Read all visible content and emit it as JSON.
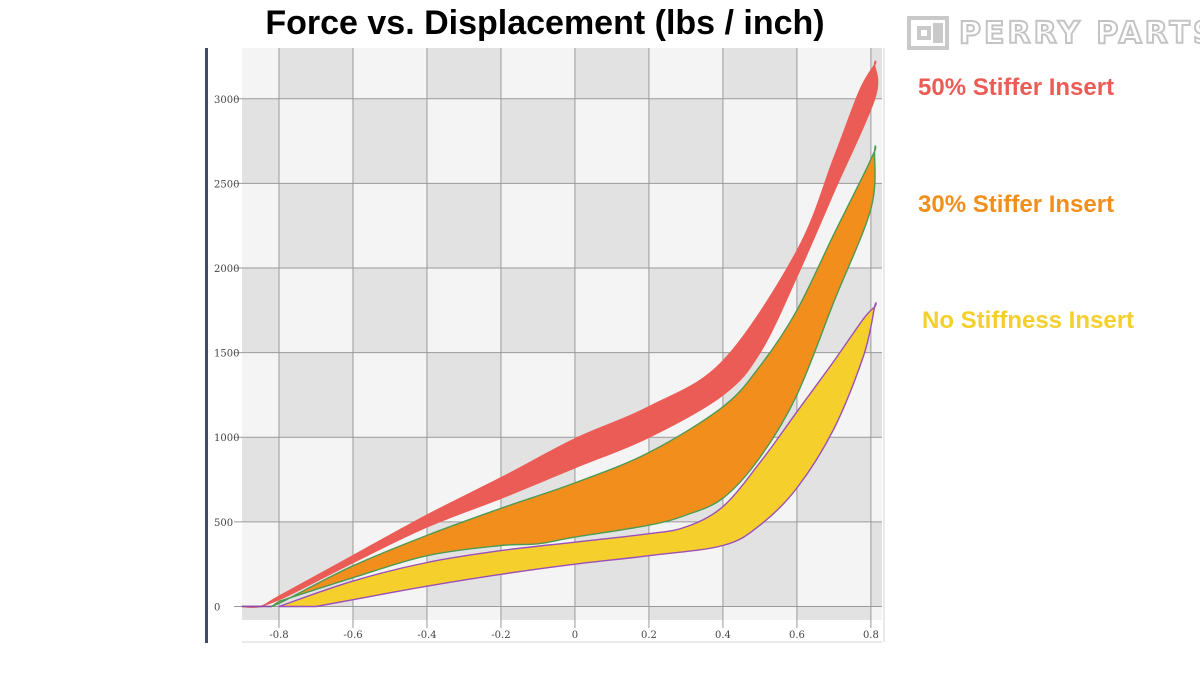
{
  "chart_data": {
    "type": "area",
    "title": "Force vs. Displacement (lbs / inch)",
    "xlabel": "",
    "ylabel": "",
    "xlim": [
      -0.9,
      0.83
    ],
    "ylim": [
      -80,
      3300
    ],
    "x_ticks": [
      -0.8,
      -0.6,
      -0.4,
      -0.2,
      0,
      0.2,
      0.4,
      0.6,
      0.8
    ],
    "x_tick_labels": [
      "-0.8",
      "-0.6",
      "-0.4",
      "-0.2",
      "0",
      "0.2",
      "0.4",
      "0.6",
      "0.8"
    ],
    "y_ticks": [
      0,
      500,
      1000,
      1500,
      2000,
      2500,
      3000
    ],
    "y_tick_labels": [
      "0",
      "500",
      "1000",
      "1500",
      "2000",
      "2500",
      "3000"
    ],
    "grid": true,
    "legend_position": "right",
    "series": [
      {
        "name": "50% Stiffer Insert",
        "color": "#ec5c56",
        "outline": "#ec5c56",
        "upper": [
          [
            -0.9,
            0
          ],
          [
            -0.85,
            0
          ],
          [
            -0.8,
            60
          ],
          [
            -0.6,
            300
          ],
          [
            -0.4,
            540
          ],
          [
            -0.2,
            760
          ],
          [
            0,
            990
          ],
          [
            0.2,
            1180
          ],
          [
            0.4,
            1450
          ],
          [
            0.6,
            2100
          ],
          [
            0.7,
            2650
          ],
          [
            0.77,
            3050
          ],
          [
            0.81,
            3200
          ]
        ],
        "lower": [
          [
            0.81,
            3200
          ],
          [
            0.81,
            3000
          ],
          [
            0.7,
            2450
          ],
          [
            0.6,
            1950
          ],
          [
            0.5,
            1500
          ],
          [
            0.4,
            1250
          ],
          [
            0.2,
            1000
          ],
          [
            0,
            820
          ],
          [
            -0.2,
            640
          ],
          [
            -0.4,
            470
          ],
          [
            -0.6,
            260
          ],
          [
            -0.78,
            60
          ],
          [
            -0.85,
            0
          ]
        ]
      },
      {
        "name": "30% Stiffer Insert",
        "color": "#f28e1c",
        "outline": "#4e9a52",
        "upper": [
          [
            -0.82,
            0
          ],
          [
            -0.78,
            40
          ],
          [
            -0.6,
            240
          ],
          [
            -0.4,
            420
          ],
          [
            -0.2,
            580
          ],
          [
            0,
            730
          ],
          [
            0.2,
            910
          ],
          [
            0.4,
            1180
          ],
          [
            0.5,
            1420
          ],
          [
            0.6,
            1750
          ],
          [
            0.7,
            2200
          ],
          [
            0.78,
            2550
          ],
          [
            0.81,
            2690
          ]
        ],
        "lower": [
          [
            0.81,
            2690
          ],
          [
            0.8,
            2350
          ],
          [
            0.7,
            1800
          ],
          [
            0.6,
            1250
          ],
          [
            0.5,
            880
          ],
          [
            0.4,
            640
          ],
          [
            0.3,
            540
          ],
          [
            0.2,
            480
          ],
          [
            0,
            410
          ],
          [
            -0.1,
            370
          ],
          [
            -0.2,
            360
          ],
          [
            -0.4,
            300
          ],
          [
            -0.6,
            170
          ],
          [
            -0.8,
            30
          ]
        ]
      },
      {
        "name": "No Stiffness Insert",
        "color": "#f5d02c",
        "outline": "#9b4fb8",
        "upper": [
          [
            -0.8,
            0
          ],
          [
            -0.6,
            150
          ],
          [
            -0.4,
            260
          ],
          [
            -0.2,
            330
          ],
          [
            0,
            380
          ],
          [
            0.2,
            430
          ],
          [
            0.3,
            470
          ],
          [
            0.4,
            590
          ],
          [
            0.5,
            850
          ],
          [
            0.6,
            1150
          ],
          [
            0.7,
            1450
          ],
          [
            0.78,
            1700
          ],
          [
            0.81,
            1770
          ]
        ],
        "lower": [
          [
            0.81,
            1770
          ],
          [
            0.78,
            1480
          ],
          [
            0.7,
            1050
          ],
          [
            0.6,
            700
          ],
          [
            0.5,
            480
          ],
          [
            0.4,
            360
          ],
          [
            0.2,
            300
          ],
          [
            0,
            250
          ],
          [
            -0.2,
            190
          ],
          [
            -0.4,
            120
          ],
          [
            -0.6,
            40
          ],
          [
            -0.7,
            0
          ]
        ]
      }
    ]
  },
  "brand": {
    "text": "PERRY PARTS"
  },
  "legend": [
    {
      "text": "50% Stiffer Insert",
      "color": "#ec5c56"
    },
    {
      "text": "30% Stiffer Insert",
      "color": "#f28e1c"
    },
    {
      "text": "No Stiffness Insert",
      "color": "#f5d02c"
    }
  ]
}
